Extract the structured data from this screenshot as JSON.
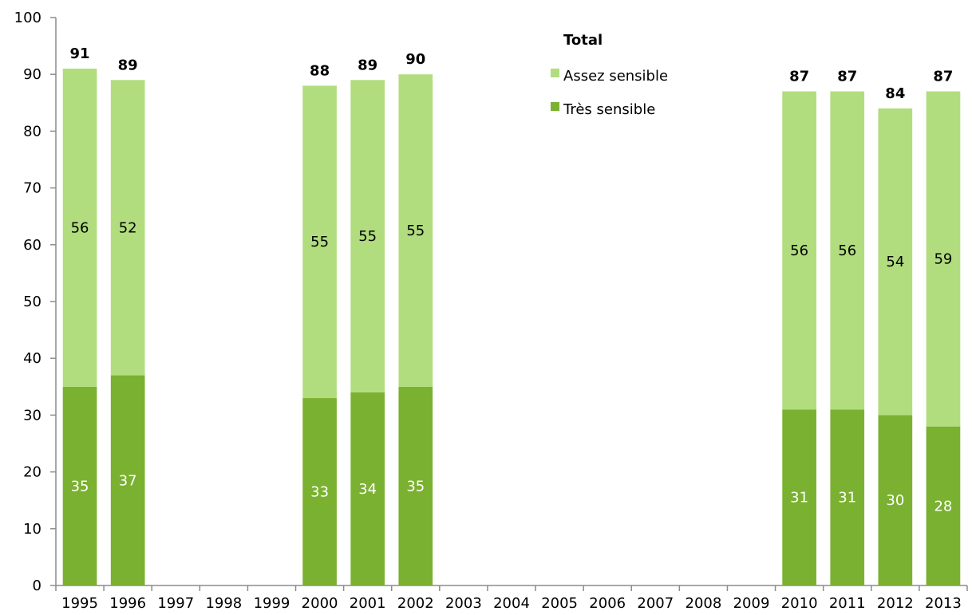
{
  "chart_data": {
    "type": "bar",
    "stacked": true,
    "categories": [
      "1995",
      "1996",
      "1997",
      "1998",
      "1999",
      "2000",
      "2001",
      "2002",
      "2003",
      "2004",
      "2005",
      "2006",
      "2007",
      "2008",
      "2009",
      "2010",
      "2011",
      "2012",
      "2013"
    ],
    "series": [
      {
        "name": "Très sensible",
        "color": "#7AB131",
        "values": [
          35,
          37,
          null,
          null,
          null,
          33,
          34,
          35,
          null,
          null,
          null,
          null,
          null,
          null,
          null,
          31,
          31,
          30,
          28
        ]
      },
      {
        "name": "Assez sensible",
        "color": "#B1DD7E",
        "values": [
          56,
          52,
          null,
          null,
          null,
          55,
          55,
          55,
          null,
          null,
          null,
          null,
          null,
          null,
          null,
          56,
          56,
          54,
          59
        ]
      }
    ],
    "totals": [
      91,
      89,
      null,
      null,
      null,
      88,
      89,
      90,
      null,
      null,
      null,
      null,
      null,
      null,
      null,
      87,
      87,
      84,
      87
    ],
    "legend_title": "Total",
    "legend_placement": "top-right",
    "yticks": [
      0,
      10,
      20,
      30,
      40,
      50,
      60,
      70,
      80,
      90,
      100
    ],
    "ylim": [
      0,
      100
    ],
    "grid": false,
    "title": "",
    "xlabel": "",
    "ylabel": ""
  }
}
